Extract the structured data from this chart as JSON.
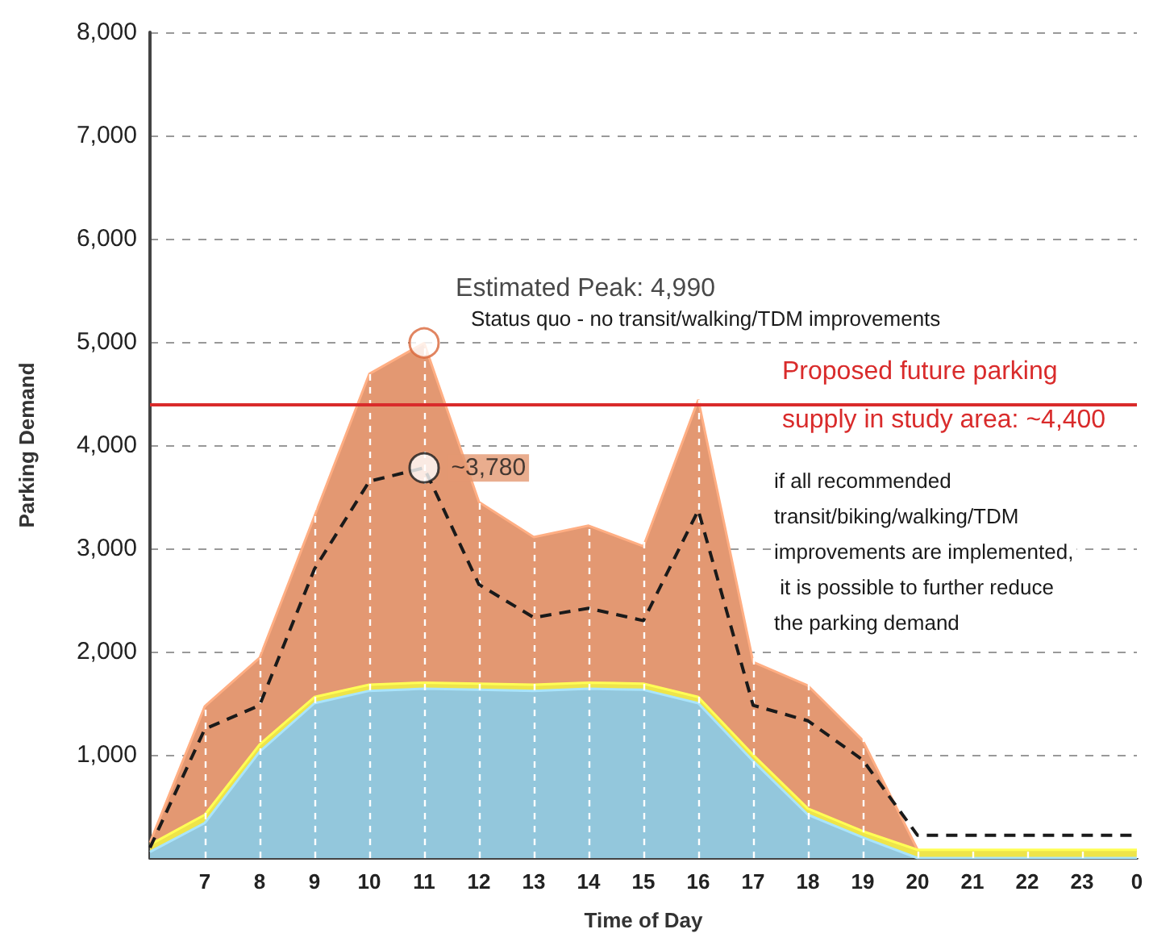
{
  "chart_data": {
    "type": "area",
    "xlabel": "Time of Day",
    "ylabel": "Parking Demand",
    "categories": [
      null,
      "7",
      "8",
      "9",
      "10",
      "11",
      "12",
      "13",
      "14",
      "15",
      "16",
      "17",
      "18",
      "19",
      "20",
      "21",
      "22",
      "23",
      "0"
    ],
    "series": [
      {
        "color": "#e39872",
        "values": [
          150,
          1470,
          1940,
          3310,
          4690,
          4990,
          3450,
          3110,
          3220,
          3020,
          4440,
          1900,
          1670,
          1140,
          80,
          null,
          null,
          null,
          null
        ]
      },
      {
        "color": "#eee44a",
        "values": [
          130,
          420,
          1100,
          1560,
          1680,
          1700,
          1690,
          1680,
          1700,
          1690,
          1560,
          1000,
          480,
          260,
          80,
          80,
          80,
          80,
          80
        ]
      },
      {
        "color": "#93c7dc",
        "values": [
          60,
          340,
          1030,
          1500,
          1620,
          1640,
          1630,
          1620,
          1640,
          1630,
          1500,
          940,
          420,
          200,
          0,
          0,
          0,
          0,
          0
        ]
      },
      {
        "type": "line",
        "color": "#1a1a1a",
        "line_style": "dashed",
        "values": [
          100,
          1250,
          1480,
          2800,
          3650,
          3780,
          2650,
          2330,
          2420,
          2300,
          3370,
          1480,
          1330,
          950,
          220,
          220,
          220,
          220,
          220
        ]
      }
    ],
    "ylim": [
      0,
      8000
    ],
    "yticks": [
      {
        "value": 0,
        "label": null
      },
      {
        "value": 1000,
        "label": "1,000"
      },
      {
        "value": 2000,
        "label": "2,000"
      },
      {
        "value": 3000,
        "label": "3,000"
      },
      {
        "value": 4000,
        "label": "4,000"
      },
      {
        "value": 5000,
        "label": "5,000"
      },
      {
        "value": 6000,
        "label": "6,000"
      },
      {
        "value": 7000,
        "label": "7,000"
      },
      {
        "value": 8000,
        "label": "8,000"
      }
    ],
    "grid": true,
    "ref_lines": [
      {
        "axis": "y",
        "value": 4400,
        "label": "Proposed future parking supply in study area: ~4,400",
        "color": "#d92b2b"
      }
    ],
    "annotations": [
      {
        "text": "Estimated Peak: 4,990",
        "x": "11",
        "y": 4990
      },
      {
        "text": "~3,780",
        "x": "11",
        "y": 3780
      },
      "Status quo - no transit/walking/TDM improvements",
      "if all recommended\ntransit/biking/walking/TDM\nimprovements are implemented,\n it is possible to further reduce\nthe parking demand"
    ]
  }
}
